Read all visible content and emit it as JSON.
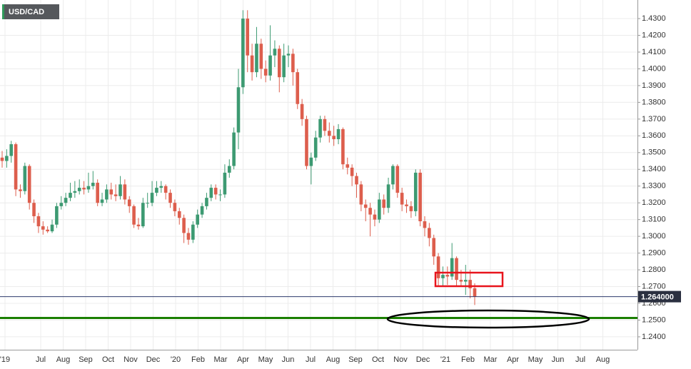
{
  "chart_data": {
    "type": "candlestick",
    "title": "USD/CAD",
    "up_color": "#3d9a72",
    "down_color": "#dd5e4d",
    "grid": true,
    "xticks": [
      "'19",
      "Jul",
      "Aug",
      "Sep",
      "Oct",
      "Nov",
      "Dec",
      "'20",
      "Feb",
      "Mar",
      "Apr",
      "May",
      "Jun",
      "Jul",
      "Aug",
      "Sep",
      "Oct",
      "Nov",
      "Dec",
      "'21",
      "Feb",
      "Mar",
      "Apr",
      "May",
      "Jun",
      "Jul",
      "Aug"
    ],
    "ylim": [
      1.2323,
      1.4411
    ],
    "yticks": [
      {
        "value": 1.24,
        "label": "1.2400"
      },
      {
        "value": 1.25,
        "label": "1.2500"
      },
      {
        "value": 1.26,
        "label": "1.2600"
      },
      {
        "value": 1.27,
        "label": "1.2700"
      },
      {
        "value": 1.28,
        "label": "1.2800"
      },
      {
        "value": 1.29,
        "label": "1.2900"
      },
      {
        "value": 1.3,
        "label": "1.3000"
      },
      {
        "value": 1.31,
        "label": "1.3100"
      },
      {
        "value": 1.32,
        "label": "1.3200"
      },
      {
        "value": 1.33,
        "label": "1.3300"
      },
      {
        "value": 1.34,
        "label": "1.3400"
      },
      {
        "value": 1.35,
        "label": "1.3500"
      },
      {
        "value": 1.36,
        "label": "1.3600"
      },
      {
        "value": 1.37,
        "label": "1.3700"
      },
      {
        "value": 1.38,
        "label": "1.3800"
      },
      {
        "value": 1.39,
        "label": "1.3900"
      },
      {
        "value": 1.4,
        "label": "1.4000"
      },
      {
        "value": 1.41,
        "label": "1.4100"
      },
      {
        "value": 1.42,
        "label": "1.4200"
      },
      {
        "value": 1.43,
        "label": "1.4300"
      }
    ],
    "last_price": 1.264,
    "last_price_label": "1.264000",
    "candles": [
      [
        1.347,
        1.351,
        1.341,
        1.345
      ],
      [
        1.345,
        1.352,
        1.341,
        1.348
      ],
      [
        1.348,
        1.357,
        1.344,
        1.355
      ],
      [
        1.355,
        1.356,
        1.324,
        1.328
      ],
      [
        1.328,
        1.331,
        1.323,
        1.327
      ],
      [
        1.327,
        1.344,
        1.325,
        1.342
      ],
      [
        1.342,
        1.343,
        1.316,
        1.32
      ],
      [
        1.32,
        1.322,
        1.308,
        1.312
      ],
      [
        1.312,
        1.314,
        1.302,
        1.306
      ],
      [
        1.306,
        1.309,
        1.301,
        1.304
      ],
      [
        1.304,
        1.306,
        1.302,
        1.303
      ],
      [
        1.303,
        1.31,
        1.302,
        1.307
      ],
      [
        1.307,
        1.32,
        1.305,
        1.318
      ],
      [
        1.318,
        1.324,
        1.316,
        1.32
      ],
      [
        1.32,
        1.326,
        1.318,
        1.323
      ],
      [
        1.323,
        1.332,
        1.321,
        1.326
      ],
      [
        1.326,
        1.333,
        1.323,
        1.327
      ],
      [
        1.327,
        1.334,
        1.325,
        1.329
      ],
      [
        1.329,
        1.333,
        1.325,
        1.328
      ],
      [
        1.328,
        1.338,
        1.326,
        1.33
      ],
      [
        1.33,
        1.339,
        1.328,
        1.332
      ],
      [
        1.332,
        1.334,
        1.318,
        1.32
      ],
      [
        1.32,
        1.326,
        1.318,
        1.322
      ],
      [
        1.322,
        1.331,
        1.32,
        1.328
      ],
      [
        1.328,
        1.332,
        1.322,
        1.325
      ],
      [
        1.325,
        1.331,
        1.321,
        1.324
      ],
      [
        1.324,
        1.336,
        1.322,
        1.331
      ],
      [
        1.331,
        1.334,
        1.319,
        1.322
      ],
      [
        1.322,
        1.324,
        1.314,
        1.318
      ],
      [
        1.318,
        1.319,
        1.305,
        1.307
      ],
      [
        1.307,
        1.311,
        1.304,
        1.306
      ],
      [
        1.306,
        1.323,
        1.305,
        1.32
      ],
      [
        1.32,
        1.326,
        1.317,
        1.32
      ],
      [
        1.32,
        1.333,
        1.318,
        1.326
      ],
      [
        1.326,
        1.333,
        1.324,
        1.329
      ],
      [
        1.329,
        1.333,
        1.326,
        1.33
      ],
      [
        1.33,
        1.331,
        1.322,
        1.326
      ],
      [
        1.326,
        1.328,
        1.317,
        1.32
      ],
      [
        1.32,
        1.322,
        1.312,
        1.315
      ],
      [
        1.315,
        1.317,
        1.307,
        1.311
      ],
      [
        1.311,
        1.313,
        1.296,
        1.302
      ],
      [
        1.302,
        1.305,
        1.295,
        1.298
      ],
      [
        1.298,
        1.309,
        1.296,
        1.307
      ],
      [
        1.307,
        1.316,
        1.305,
        1.313
      ],
      [
        1.313,
        1.32,
        1.311,
        1.318
      ],
      [
        1.318,
        1.326,
        1.316,
        1.323
      ],
      [
        1.323,
        1.331,
        1.321,
        1.329
      ],
      [
        1.329,
        1.331,
        1.322,
        1.325
      ],
      [
        1.325,
        1.328,
        1.321,
        1.325
      ],
      [
        1.325,
        1.343,
        1.323,
        1.338
      ],
      [
        1.338,
        1.346,
        1.335,
        1.342
      ],
      [
        1.342,
        1.365,
        1.34,
        1.362
      ],
      [
        1.362,
        1.4,
        1.352,
        1.389
      ],
      [
        1.389,
        1.435,
        1.385,
        1.43
      ],
      [
        1.43,
        1.435,
        1.398,
        1.408
      ],
      [
        1.408,
        1.415,
        1.393,
        1.398
      ],
      [
        1.398,
        1.425,
        1.395,
        1.415
      ],
      [
        1.415,
        1.418,
        1.394,
        1.4
      ],
      [
        1.4,
        1.405,
        1.392,
        1.396
      ],
      [
        1.396,
        1.426,
        1.393,
        1.408
      ],
      [
        1.408,
        1.417,
        1.401,
        1.412
      ],
      [
        1.412,
        1.414,
        1.386,
        1.395
      ],
      [
        1.395,
        1.415,
        1.392,
        1.408
      ],
      [
        1.408,
        1.414,
        1.401,
        1.409
      ],
      [
        1.409,
        1.412,
        1.39,
        1.398
      ],
      [
        1.398,
        1.4,
        1.376,
        1.379
      ],
      [
        1.379,
        1.382,
        1.366,
        1.37
      ],
      [
        1.37,
        1.372,
        1.34,
        1.342
      ],
      [
        1.342,
        1.35,
        1.331,
        1.347
      ],
      [
        1.347,
        1.363,
        1.345,
        1.359
      ],
      [
        1.359,
        1.372,
        1.356,
        1.37
      ],
      [
        1.37,
        1.372,
        1.36,
        1.363
      ],
      [
        1.363,
        1.368,
        1.356,
        1.36
      ],
      [
        1.36,
        1.366,
        1.354,
        1.358
      ],
      [
        1.358,
        1.367,
        1.355,
        1.364
      ],
      [
        1.364,
        1.365,
        1.34,
        1.343
      ],
      [
        1.343,
        1.347,
        1.337,
        1.341
      ],
      [
        1.341,
        1.343,
        1.33,
        1.336
      ],
      [
        1.336,
        1.338,
        1.323,
        1.331
      ],
      [
        1.331,
        1.333,
        1.315,
        1.319
      ],
      [
        1.319,
        1.322,
        1.309,
        1.317
      ],
      [
        1.317,
        1.32,
        1.3,
        1.313
      ],
      [
        1.313,
        1.316,
        1.306,
        1.31
      ],
      [
        1.31,
        1.326,
        1.308,
        1.322
      ],
      [
        1.322,
        1.325,
        1.313,
        1.317
      ],
      [
        1.317,
        1.335,
        1.314,
        1.331
      ],
      [
        1.331,
        1.343,
        1.328,
        1.342
      ],
      [
        1.342,
        1.343,
        1.323,
        1.326
      ],
      [
        1.326,
        1.329,
        1.315,
        1.319
      ],
      [
        1.319,
        1.322,
        1.314,
        1.318
      ],
      [
        1.318,
        1.321,
        1.311,
        1.315
      ],
      [
        1.315,
        1.34,
        1.312,
        1.338
      ],
      [
        1.338,
        1.34,
        1.306,
        1.309
      ],
      [
        1.309,
        1.312,
        1.3,
        1.305
      ],
      [
        1.305,
        1.308,
        1.294,
        1.299
      ],
      [
        1.299,
        1.301,
        1.283,
        1.288
      ],
      [
        1.288,
        1.29,
        1.27,
        1.275
      ],
      [
        1.275,
        1.282,
        1.27,
        1.277
      ],
      [
        1.277,
        1.282,
        1.271,
        1.276
      ],
      [
        1.276,
        1.296,
        1.274,
        1.287
      ],
      [
        1.287,
        1.288,
        1.27,
        1.274
      ],
      [
        1.274,
        1.28,
        1.27,
        1.273
      ],
      [
        1.273,
        1.283,
        1.265,
        1.274
      ],
      [
        1.274,
        1.28,
        1.263,
        1.269
      ],
      [
        1.269,
        1.272,
        1.259,
        1.264
      ]
    ]
  }
}
